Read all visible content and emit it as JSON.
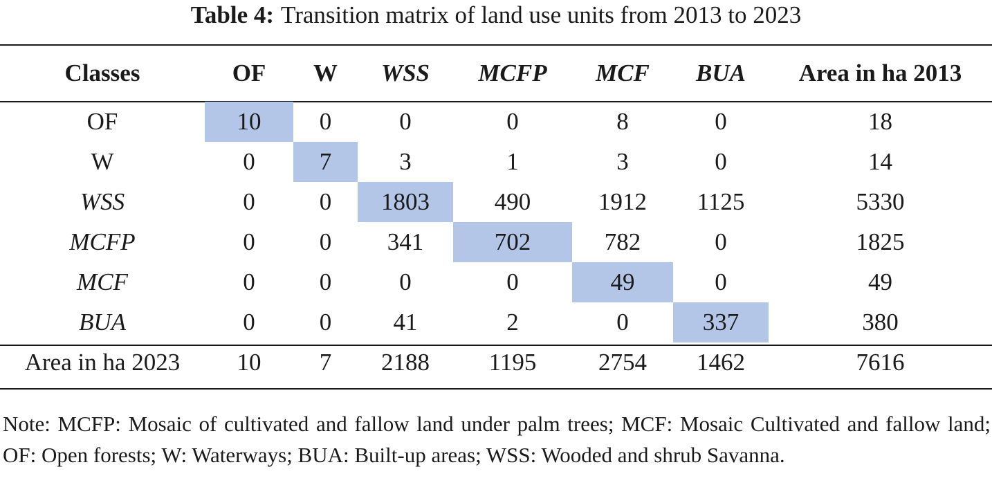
{
  "caption": {
    "label": "Table 4:",
    "text": "Transition matrix of land use units from 2013 to 2023"
  },
  "table": {
    "headers": [
      "Classes",
      "OF",
      "W",
      "WSS",
      "MCFP",
      "MCF",
      "BUA",
      "Area in ha 2013"
    ],
    "rows": [
      {
        "label": "OF",
        "values": [
          "10",
          "0",
          "0",
          "0",
          "8",
          "0"
        ],
        "total": "18"
      },
      {
        "label": "W",
        "values": [
          "0",
          "7",
          "3",
          "1",
          "3",
          "0"
        ],
        "total": "14"
      },
      {
        "label": "WSS",
        "values": [
          "0",
          "0",
          "1803",
          "490",
          "1912",
          "1125"
        ],
        "total": "5330"
      },
      {
        "label": "MCFP",
        "values": [
          "0",
          "0",
          "341",
          "702",
          "782",
          "0"
        ],
        "total": "1825"
      },
      {
        "label": "MCF",
        "values": [
          "0",
          "0",
          "0",
          "0",
          "49",
          "0"
        ],
        "total": "49"
      },
      {
        "label": "BUA",
        "values": [
          "0",
          "0",
          "41",
          "2",
          "0",
          "337"
        ],
        "total": "380"
      }
    ],
    "totals_row": {
      "label": "Area in ha 2023",
      "values": [
        "10",
        "7",
        "2188",
        "1195",
        "2754",
        "1462"
      ],
      "total": "7616"
    },
    "highlight_color": "#b4c6e7"
  },
  "note": "Note: MCFP: Mosaic of cultivated and fallow land under palm trees; MCF: Mosaic Cultivated and fallow land; OF: Open forests; W: Waterways; BUA: Built-up areas; WSS: Wooded and shrub Savanna."
}
